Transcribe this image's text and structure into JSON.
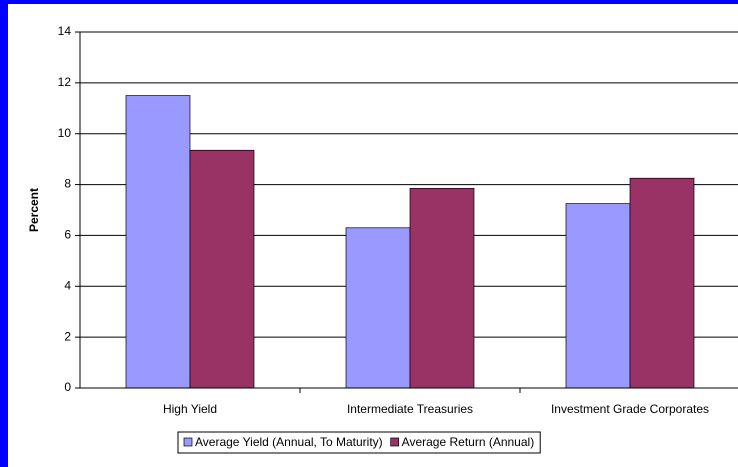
{
  "chart_data": {
    "type": "bar",
    "y_label": "Percent",
    "categories": [
      "High Yield",
      "Intermediate Treasuries",
      "Investment Grade Corporates"
    ],
    "series": [
      {
        "name": "Average Yield (Annual, To Maturity)",
        "color": "#9999ff",
        "values": [
          11.5,
          6.3,
          7.25
        ]
      },
      {
        "name": "Average Return (Annual)",
        "color": "#993366",
        "values": [
          9.35,
          7.85,
          8.25
        ]
      }
    ],
    "ylim": [
      0,
      14
    ],
    "yticks": [
      0,
      2,
      4,
      6,
      8,
      10,
      12,
      14
    ],
    "grid": true,
    "legend": "bottom"
  }
}
